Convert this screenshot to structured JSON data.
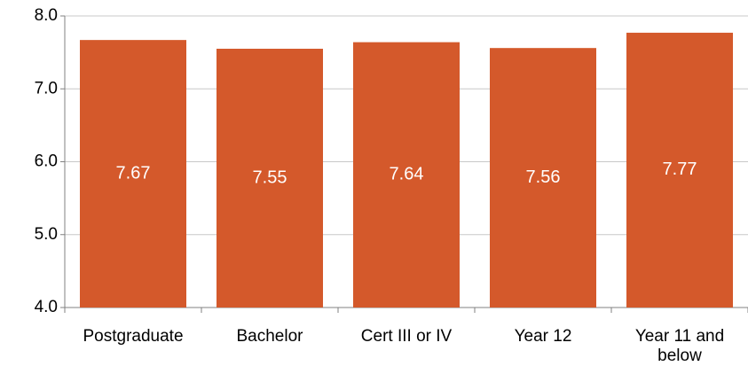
{
  "chart_data": {
    "type": "bar",
    "categories": [
      "Postgraduate",
      "Bachelor",
      "Cert III or IV",
      "Year 12",
      "Year 11 and below"
    ],
    "values": [
      7.67,
      7.55,
      7.64,
      7.56,
      7.77
    ],
    "color": "#d4592b",
    "ylim": [
      4,
      8
    ],
    "yticks": [
      {
        "value": 4,
        "label": "4.0"
      },
      {
        "value": 5,
        "label": "5.0"
      },
      {
        "value": 6,
        "label": "6.0"
      },
      {
        "value": 7,
        "label": "7.0"
      },
      {
        "value": 8,
        "label": "8.0"
      }
    ],
    "grid": true
  }
}
